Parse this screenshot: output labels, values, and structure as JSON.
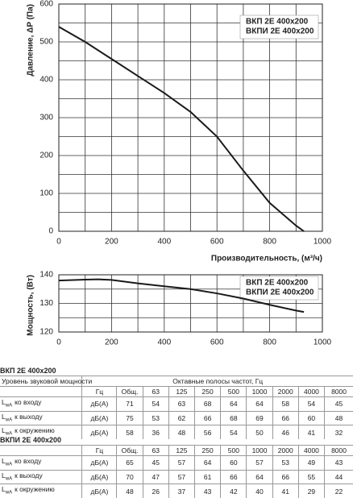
{
  "chart_data": [
    {
      "type": "line",
      "ylabel": "Давление, ΔP (Па)",
      "xlabel": "Производительность, (м³/ч)",
      "annotations": [
        "ВКП 2Е 400x200",
        "ВКПИ 2Е 400x200"
      ],
      "x": [
        0,
        100,
        200,
        300,
        400,
        500,
        600,
        700,
        800,
        900,
        930
      ],
      "series": [
        {
          "color": "#1a1a1a",
          "values": [
            540,
            500,
            455,
            410,
            365,
            315,
            250,
            160,
            75,
            15,
            0
          ]
        }
      ],
      "xlim": [
        0,
        1000
      ],
      "xticks": [
        0,
        200,
        400,
        600,
        800,
        1000
      ],
      "ylim": [
        0,
        600
      ],
      "yticks": [
        0,
        100,
        200,
        300,
        400,
        500,
        600
      ],
      "grid": true
    },
    {
      "type": "line",
      "ylabel": "Мощность, (Вт)",
      "annotations": [
        "ВКП 2Е 400x200",
        "ВКПИ 2Е 400x200"
      ],
      "x": [
        0,
        100,
        150,
        200,
        300,
        400,
        500,
        600,
        700,
        800,
        900,
        930
      ],
      "series": [
        {
          "color": "#1a1a1a",
          "values": [
            138,
            138.3,
            138.4,
            138.2,
            137,
            136,
            135,
            133.5,
            131.7,
            129.5,
            127.5,
            127
          ]
        }
      ],
      "xlim": [
        0,
        1000
      ],
      "xticks": [
        0,
        200,
        400,
        600,
        800,
        1000
      ],
      "ylim": [
        120,
        140
      ],
      "yticks": [
        120,
        130,
        140
      ],
      "grid": true
    }
  ],
  "tables": [
    {
      "title": "ВКП 2Е 400x200",
      "caption": "Уровень звуковой мощности",
      "bands_title": "Октавные полосы частот, Гц",
      "header": [
        "Гц",
        "Общ.",
        "63",
        "125",
        "250",
        "500",
        "1000",
        "2000",
        "4000",
        "8000"
      ],
      "rows": [
        {
          "label": [
            "L",
            "wA",
            "ко входу"
          ],
          "unit": "дБ(А)",
          "cells": [
            71,
            54,
            63,
            68,
            64,
            64,
            58,
            54,
            45
          ]
        },
        {
          "label": [
            "L",
            "wA",
            "к выходу"
          ],
          "unit": "дБ(А)",
          "cells": [
            75,
            53,
            62,
            66,
            68,
            69,
            66,
            60,
            48
          ]
        },
        {
          "label": [
            "L",
            "wA",
            "к окружению"
          ],
          "unit": "дБ(А)",
          "cells": [
            58,
            36,
            48,
            56,
            54,
            50,
            46,
            41,
            32
          ]
        }
      ]
    },
    {
      "title": "ВКПИ 2Е 400x200",
      "header": [
        "Гц",
        "Общ.",
        "63",
        "125",
        "250",
        "500",
        "1000",
        "2000",
        "4000",
        "8000"
      ],
      "rows": [
        {
          "label": [
            "L",
            "wA",
            "ко входу"
          ],
          "unit": "дБ(А)",
          "cells": [
            65,
            45,
            57,
            64,
            60,
            57,
            53,
            49,
            43
          ]
        },
        {
          "label": [
            "L",
            "wA",
            "к выходу"
          ],
          "unit": "дБ(А)",
          "cells": [
            70,
            47,
            57,
            61,
            66,
            64,
            66,
            55,
            44
          ]
        },
        {
          "label": [
            "L",
            "wA",
            "к окружению"
          ],
          "unit": "дБ(А)",
          "cells": [
            48,
            26,
            37,
            43,
            42,
            40,
            41,
            29,
            22
          ]
        }
      ]
    }
  ]
}
